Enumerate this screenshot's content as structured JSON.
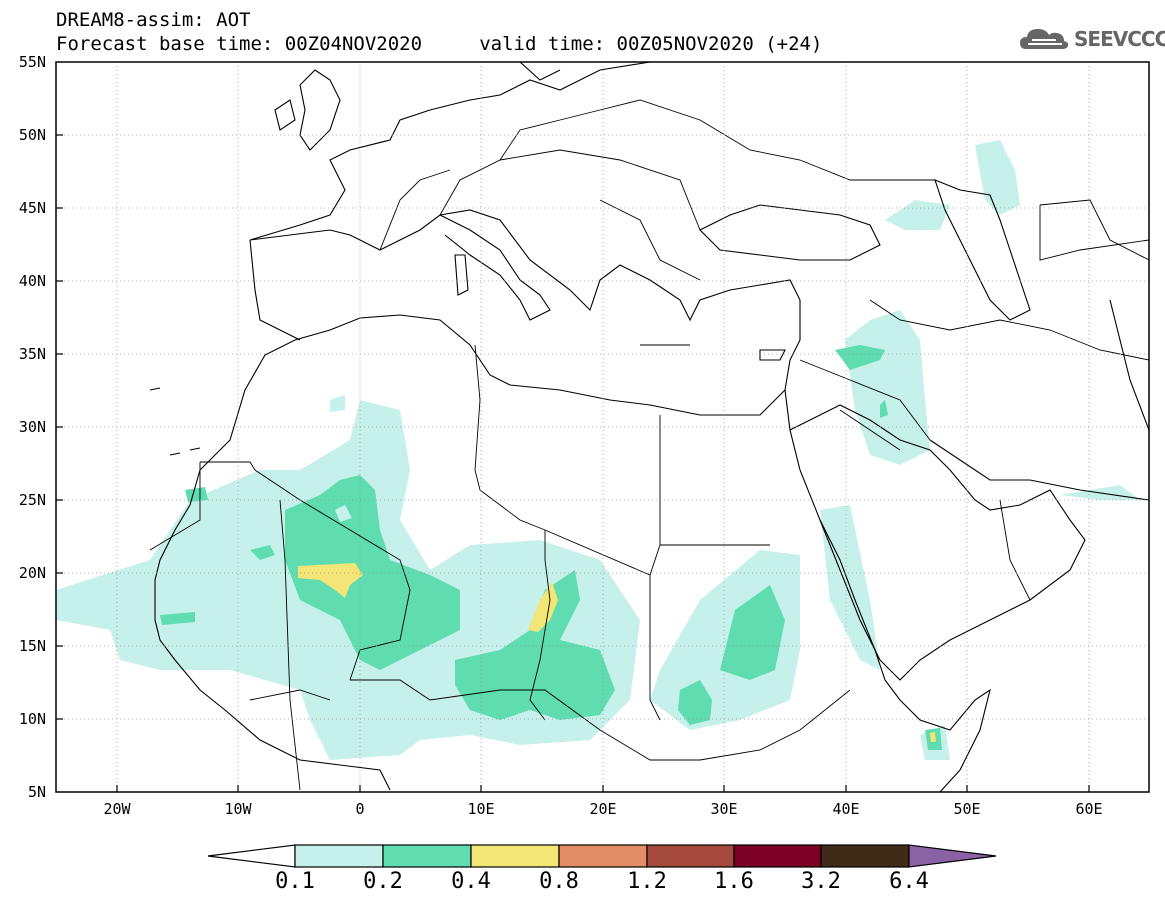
{
  "header": {
    "title_line1": "DREAM8-assim: AOT",
    "title_line2": "Forecast base time: 00Z04NOV2020     valid time: 00Z05NOV2020 (+24)",
    "logo_text": "SEEVCCC"
  },
  "map": {
    "projection": "cylindrical",
    "lon_range": [
      -25,
      65
    ],
    "lat_range": [
      5,
      55
    ],
    "lat_labels": [
      "55N",
      "50N",
      "45N",
      "40N",
      "35N",
      "30N",
      "25N",
      "20N",
      "15N",
      "10N",
      "5N"
    ],
    "lon_labels": [
      "20W",
      "10W",
      "0",
      "10E",
      "20E",
      "30E",
      "40E",
      "50E",
      "60E"
    ],
    "gridlines": "dotted"
  },
  "legend": {
    "labels": [
      "0.1",
      "0.2",
      "0.4",
      "0.8",
      "1.2",
      "1.6",
      "3.2",
      "6.4"
    ],
    "colors": [
      "#ffffff",
      "#c6f0ea",
      "#5fdcb0",
      "#f4e577",
      "#e38d66",
      "#a5483d",
      "#7a0026",
      "#3f2a18",
      "#8a63a7"
    ]
  }
}
